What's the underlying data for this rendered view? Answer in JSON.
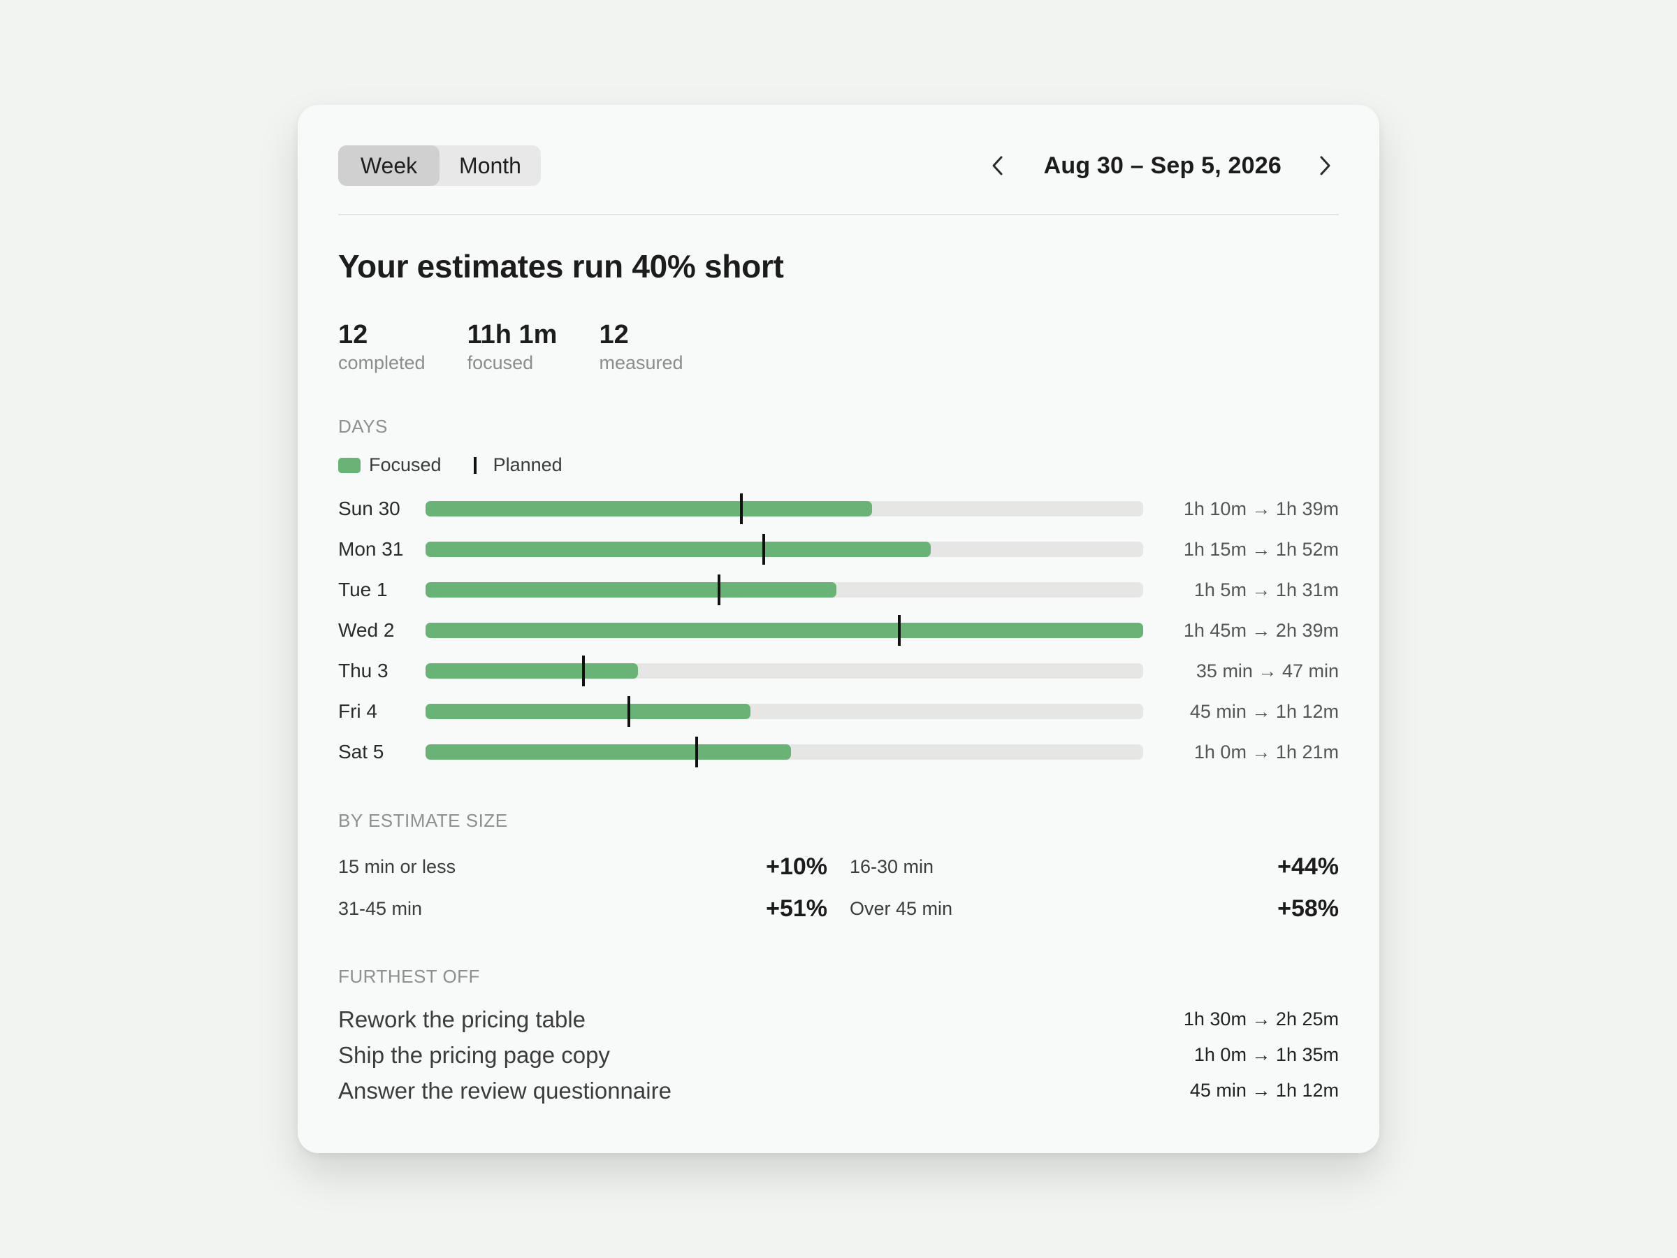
{
  "period_toggle": {
    "week_label": "Week",
    "month_label": "Month",
    "selected": "Week"
  },
  "date_nav": {
    "range": "Aug 30 – Sep 5, 2026",
    "prev_icon": "chevron-left-icon",
    "next_icon": "chevron-right-icon"
  },
  "headline": "Your estimates run 40% short",
  "stats": [
    {
      "value": "12",
      "label": "completed"
    },
    {
      "value": "11h 1m",
      "label": "focused"
    },
    {
      "value": "12",
      "label": "measured"
    }
  ],
  "days_section": {
    "title": "DAYS",
    "legend": {
      "focused": "Focused",
      "planned": "Planned"
    },
    "colors": {
      "focused": "#69b377",
      "planned": "#111111",
      "track": "#e6e7e5"
    },
    "max_minutes": 159,
    "rows": [
      {
        "day": "Sun 30",
        "planned_min": 70,
        "focused_min": 99,
        "text": "1h 10m → 1h 39m"
      },
      {
        "day": "Mon 31",
        "planned_min": 75,
        "focused_min": 112,
        "text": "1h 15m → 1h 52m"
      },
      {
        "day": "Tue 1",
        "planned_min": 65,
        "focused_min": 91,
        "text": "1h 5m → 1h 31m"
      },
      {
        "day": "Wed 2",
        "planned_min": 105,
        "focused_min": 159,
        "text": "1h 45m → 2h 39m"
      },
      {
        "day": "Thu 3",
        "planned_min": 35,
        "focused_min": 47,
        "text": "35 min → 47 min"
      },
      {
        "day": "Fri 4",
        "planned_min": 45,
        "focused_min": 72,
        "text": "45 min → 1h 12m"
      },
      {
        "day": "Sat 5",
        "planned_min": 60,
        "focused_min": 81,
        "text": "1h 0m → 1h 21m"
      }
    ]
  },
  "estimate_size": {
    "title": "BY ESTIMATE SIZE",
    "items": [
      {
        "label": "15 min or less",
        "value": "+10%"
      },
      {
        "label": "16-30 min",
        "value": "+44%"
      },
      {
        "label": "31-45 min",
        "value": "+51%"
      },
      {
        "label": "Over 45 min",
        "value": "+58%"
      }
    ]
  },
  "furthest_off": {
    "title": "FURTHEST OFF",
    "items": [
      {
        "name": "Rework the pricing table",
        "text": "1h 30m → 2h 25m"
      },
      {
        "name": "Ship the pricing page copy",
        "text": "1h 0m → 1h 35m"
      },
      {
        "name": "Answer the review questionnaire",
        "text": "45 min → 1h 12m"
      }
    ]
  }
}
